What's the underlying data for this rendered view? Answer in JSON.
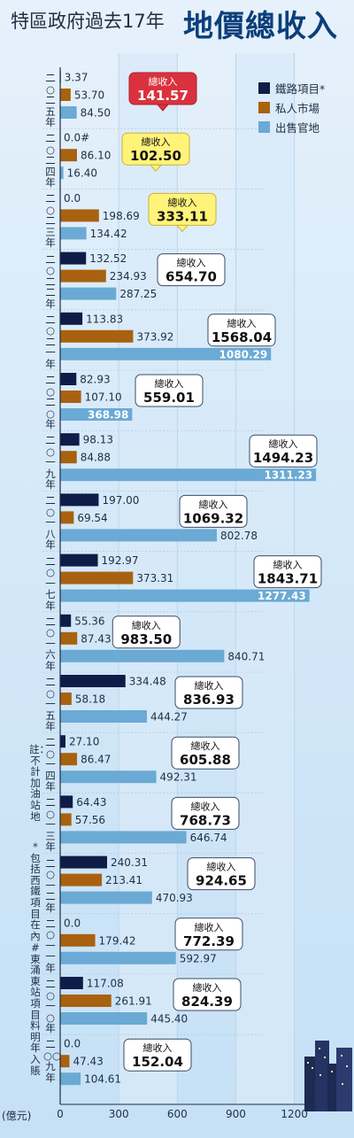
{
  "title": "特區政府過去17年",
  "title_highlight": "地價總收入",
  "unit_label": "(億元)",
  "total_label": "總收入",
  "notes": {
    "note1": "註：不計加油站地",
    "note2": "*包括西鐵項目在內",
    "note3": "#東涌東站項目料明年入賬"
  },
  "colors": {
    "rail": "#0f1c48",
    "private": "#a8620f",
    "govt": "#6aaad4",
    "highlight_box": "#d9323e",
    "yellow_box": "#fff37a",
    "band": "#d8eaf8"
  },
  "chart_data": {
    "type": "bar",
    "orientation": "horizontal",
    "title": "特區政府過去17年地價總收入",
    "xlabel": "(億元)",
    "xlim": [
      0,
      1300
    ],
    "xticks": [
      0,
      300,
      600,
      900,
      1200
    ],
    "xtick_labels": [
      "0",
      "300",
      "600",
      "900",
      "1200"
    ],
    "legend_position": "top-right",
    "series": [
      {
        "name": "鐵路項目*",
        "color": "#0f1c48",
        "values": [
          3.37,
          0.0,
          0.0,
          132.52,
          113.83,
          82.93,
          98.13,
          197.0,
          192.97,
          55.36,
          334.48,
          27.1,
          64.43,
          240.31,
          0.0,
          117.08,
          0.0
        ]
      },
      {
        "name": "私人市場",
        "color": "#a8620f",
        "values": [
          53.7,
          86.1,
          198.69,
          234.93,
          373.92,
          107.1,
          84.88,
          69.54,
          373.31,
          87.43,
          58.18,
          86.47,
          57.56,
          213.41,
          179.42,
          261.91,
          47.43
        ]
      },
      {
        "name": "出售官地",
        "color": "#6aaad4",
        "values": [
          84.5,
          16.4,
          134.42,
          287.25,
          1080.29,
          368.98,
          1311.23,
          802.78,
          1277.43,
          840.71,
          444.27,
          492.31,
          646.74,
          470.93,
          592.97,
          445.4,
          104.61
        ]
      }
    ],
    "categories": [
      {
        "year_label": "二○二五年",
        "totals": "141.57",
        "values_text": [
          "3.37",
          "53.70",
          "84.50"
        ],
        "box": "red"
      },
      {
        "year_label": "二○二四年",
        "totals": "102.50",
        "values_text": [
          "0.0#",
          "86.10",
          "16.40"
        ],
        "box": "yellow"
      },
      {
        "year_label": "二○二三年",
        "totals": "333.11",
        "values_text": [
          "0.0",
          "198.69",
          "134.42"
        ],
        "box": "yellow"
      },
      {
        "year_label": "二○二二年",
        "totals": "654.70",
        "values_text": [
          "132.52",
          "234.93",
          "287.25"
        ],
        "box": "white"
      },
      {
        "year_label": "二○二一年",
        "totals": "1568.04",
        "values_text": [
          "113.83",
          "373.92",
          "1080.29"
        ],
        "box": "white"
      },
      {
        "year_label": "二○二○年",
        "totals": "559.01",
        "values_text": [
          "82.93",
          "107.10",
          "368.98"
        ],
        "box": "white"
      },
      {
        "year_label": "二○一九年",
        "totals": "1494.23",
        "values_text": [
          "98.13",
          "84.88",
          "1311.23"
        ],
        "box": "white"
      },
      {
        "year_label": "二○一八年",
        "totals": "1069.32",
        "values_text": [
          "197.00",
          "69.54",
          "802.78"
        ],
        "box": "white"
      },
      {
        "year_label": "二○一七年",
        "totals": "1843.71",
        "values_text": [
          "192.97",
          "373.31",
          "1277.43"
        ],
        "box": "white"
      },
      {
        "year_label": "二○一六年",
        "totals": "983.50",
        "values_text": [
          "55.36",
          "87.43",
          "840.71"
        ],
        "box": "white"
      },
      {
        "year_label": "二○一五年",
        "totals": "836.93",
        "values_text": [
          "334.48",
          "58.18",
          "444.27"
        ],
        "box": "white"
      },
      {
        "year_label": "二○一四年",
        "totals": "605.88",
        "values_text": [
          "27.10",
          "86.47",
          "492.31"
        ],
        "box": "white"
      },
      {
        "year_label": "二○一三年",
        "totals": "768.73",
        "values_text": [
          "64.43",
          "57.56",
          "646.74"
        ],
        "box": "white"
      },
      {
        "year_label": "二○一二年",
        "totals": "924.65",
        "values_text": [
          "240.31",
          "213.41",
          "470.93"
        ],
        "box": "white"
      },
      {
        "year_label": "二○一一年",
        "totals": "772.39",
        "values_text": [
          "0.0",
          "179.42",
          "592.97"
        ],
        "box": "white"
      },
      {
        "year_label": "二○一○年",
        "totals": "824.39",
        "values_text": [
          "117.08",
          "261.91",
          "445.40"
        ],
        "box": "white"
      },
      {
        "year_label": "二○○九年",
        "totals": "152.04",
        "values_text": [
          "0.0",
          "47.43",
          "104.61"
        ],
        "box": "white"
      }
    ]
  }
}
